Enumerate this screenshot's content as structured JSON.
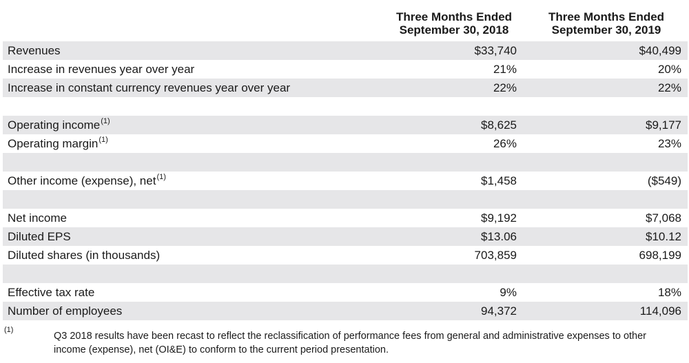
{
  "columns": [
    {
      "line1": "Three Months Ended",
      "line2": "September 30, 2018"
    },
    {
      "line1": "Three Months Ended",
      "line2": "September 30, 2019"
    }
  ],
  "rows": [
    {
      "label": "Revenues",
      "sup": "",
      "v1": "$33,740",
      "v2": "$40,499"
    },
    {
      "label": "Increase in revenues year over year",
      "sup": "",
      "v1": "21%",
      "v2": "20%"
    },
    {
      "label": "Increase in constant currency revenues year over year",
      "sup": "",
      "v1": "22%",
      "v2": "22%"
    },
    {
      "label": "Operating income",
      "sup": "(1)",
      "v1": "$8,625",
      "v2": "$9,177"
    },
    {
      "label": "Operating margin",
      "sup": "(1)",
      "v1": "26%",
      "v2": "23%"
    },
    {
      "label": "Other income (expense), net",
      "sup": "(1)",
      "v1": "$1,458",
      "v2": "($549)"
    },
    {
      "label": "Net income",
      "sup": "",
      "v1": "$9,192",
      "v2": "$7,068"
    },
    {
      "label": "Diluted EPS",
      "sup": "",
      "v1": "$13.06",
      "v2": "$10.12"
    },
    {
      "label": "Diluted shares (in thousands)",
      "sup": "",
      "v1": "703,859",
      "v2": "698,199"
    },
    {
      "label": "Effective tax rate",
      "sup": "",
      "v1": "9%",
      "v2": "18%"
    },
    {
      "label": "Number of employees",
      "sup": "",
      "v1": "94,372",
      "v2": "114,096"
    }
  ],
  "footnote": {
    "marker": "(1)",
    "text": "Q3 2018 results have been recast to reflect the reclassification of performance fees from general and administrative expenses to other income (expense), net (OI&E) to conform to the current period presentation."
  },
  "colors": {
    "row_shade": "#e6e6e8",
    "text": "#1a1a1a"
  }
}
